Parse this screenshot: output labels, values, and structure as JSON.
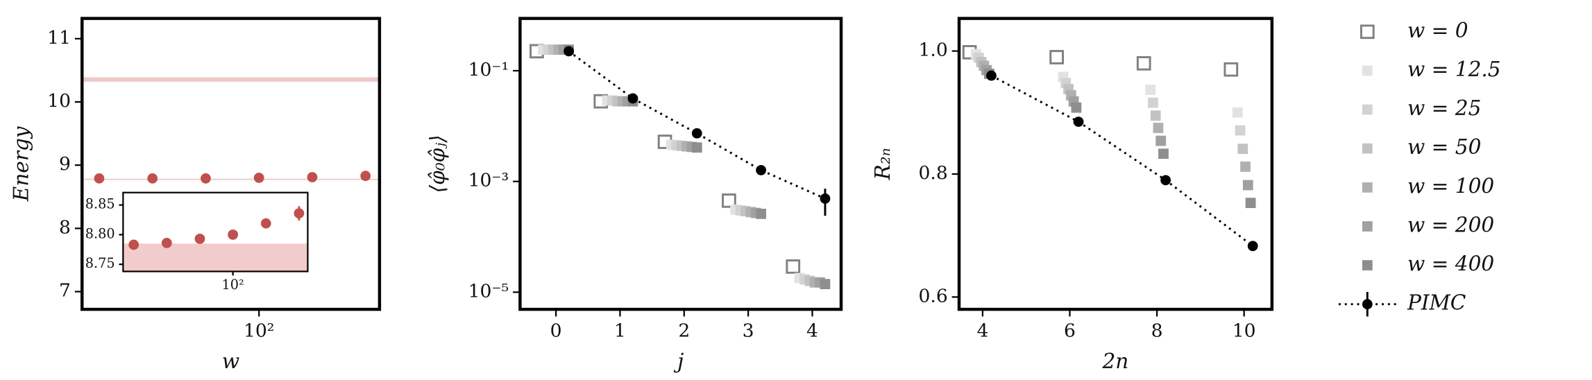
{
  "chart_data": [
    {
      "type": "scatter",
      "xlabel": "w",
      "ylabel": "Energy",
      "xscale": "log",
      "xlim": [
        10,
        480
      ],
      "xticks": [
        {
          "value": 100,
          "label": "10²"
        }
      ],
      "ylim": [
        6.72,
        11.32
      ],
      "yticks": [
        7,
        8,
        9,
        10,
        11
      ],
      "bands": [
        {
          "range": [
            10.32,
            10.39
          ],
          "color": "#ecc9c9"
        },
        {
          "range": [
            8.765,
            8.785
          ],
          "color": "#ecc9c9"
        }
      ],
      "series": [
        {
          "x": [
            12.5,
            25,
            50,
            100,
            200,
            400
          ],
          "values": [
            8.79,
            8.79,
            8.79,
            8.8,
            8.81,
            8.83
          ],
          "color": "#c0504d",
          "marker": "circle"
        }
      ]
    },
    {
      "type": "scatter",
      "inset": true,
      "xscale": "log",
      "xlim": [
        10,
        480
      ],
      "xticks": [
        {
          "value": 100,
          "label": "10²"
        }
      ],
      "ylim": [
        8.738,
        8.871
      ],
      "yticks": [
        8.75,
        {
          "value": 8.8,
          "label": "8.80"
        },
        8.85
      ],
      "bands": [
        {
          "range": [
            8.7,
            8.785
          ],
          "color": "#f2cccc"
        }
      ],
      "series": [
        {
          "x": [
            12.5,
            25,
            50,
            100,
            200,
            400
          ],
          "values": [
            8.783,
            8.786,
            8.793,
            8.8,
            8.819,
            8.836
          ],
          "errors": [
            0.002,
            0.002,
            0.002,
            0.003,
            0.008,
            0.012
          ],
          "color": "#c0504d",
          "marker": "circle"
        }
      ]
    },
    {
      "type": "line",
      "xlabel": "j",
      "ylabel": "⟨φ̂₀φ̂ⱼ⟩",
      "yscale": "log",
      "xlim": [
        -0.56,
        4.45
      ],
      "xticks": [
        0,
        1,
        2,
        3,
        4
      ],
      "ylim": [
        4.9e-06,
        0.88
      ],
      "yticks": [
        {
          "value": 0.1,
          "label": "10⁻¹"
        },
        {
          "value": 0.001,
          "label": "10⁻³"
        },
        {
          "value": 1e-05,
          "label": "10⁻⁵"
        }
      ],
      "series": [
        {
          "name": "w = 0",
          "x": [
            -0.3,
            0.7,
            1.7,
            2.7,
            3.7
          ],
          "values": [
            0.225,
            0.028,
            0.0052,
            0.00045,
            2.9e-05
          ],
          "color": "#808080",
          "marker": "square-open"
        },
        {
          "name": "w = 12.5",
          "x": [
            -0.2,
            0.8,
            1.8,
            2.8,
            3.8
          ],
          "values": [
            0.24,
            0.029,
            0.0046,
            0.00031,
            1.8e-05
          ],
          "color": "#e2e2e2",
          "marker": "square"
        },
        {
          "name": "w = 25",
          "x": [
            -0.12,
            0.88,
            1.88,
            2.88,
            3.88
          ],
          "values": [
            0.24,
            0.029,
            0.0045,
            0.0003,
            1.7e-05
          ],
          "color": "#d2d2d2",
          "marker": "square"
        },
        {
          "name": "w = 50",
          "x": [
            -0.04,
            0.96,
            1.96,
            2.96,
            3.96
          ],
          "values": [
            0.24,
            0.028,
            0.0044,
            0.00029,
            1.6e-05
          ],
          "color": "#c2c2c2",
          "marker": "square"
        },
        {
          "name": "w = 100",
          "x": [
            0.04,
            1.04,
            2.04,
            3.04,
            4.04
          ],
          "values": [
            0.24,
            0.028,
            0.0043,
            0.00028,
            1.5e-05
          ],
          "color": "#b0b0b0",
          "marker": "square"
        },
        {
          "name": "w = 200",
          "x": [
            0.12,
            1.12,
            2.12,
            3.12,
            4.12
          ],
          "values": [
            0.24,
            0.028,
            0.0042,
            0.00027,
            1.5e-05
          ],
          "color": "#a0a0a0",
          "marker": "square"
        },
        {
          "name": "w = 400",
          "x": [
            0.2,
            1.2,
            2.2,
            3.2,
            4.2
          ],
          "values": [
            0.24,
            0.028,
            0.0041,
            0.00026,
            1.4e-05
          ],
          "color": "#8e8e8e",
          "marker": "square"
        },
        {
          "name": "PIMC",
          "x": [
            0.2,
            1.2,
            2.2,
            3.2,
            4.2
          ],
          "values": [
            0.225,
            0.0316,
            0.0074,
            0.0016,
            0.00049
          ],
          "errors": [
            0.005,
            0.001,
            0.0002,
            5e-05,
            0.00025
          ],
          "color": "#000000",
          "marker": "circle",
          "linestyle": "dotted"
        }
      ]
    },
    {
      "type": "line",
      "xlabel": "2n",
      "ylabel": "R₂ₙ",
      "xlim": [
        3.46,
        10.64
      ],
      "xticks": [
        4,
        6,
        8,
        10
      ],
      "ylim": [
        0.58,
        1.053
      ],
      "yticks": [
        0.6,
        0.8,
        {
          "value": 1,
          "label": "1.0"
        }
      ],
      "series": [
        {
          "x": [
            3.7,
            5.7,
            7.7,
            9.7
          ],
          "values": [
            0.998,
            0.99,
            0.98,
            0.97
          ],
          "color": "#808080",
          "marker": "square-open"
        },
        {
          "x": [
            3.85,
            5.85,
            7.85,
            9.85
          ],
          "values": [
            0.995,
            0.958,
            0.937,
            0.9
          ],
          "color": "#e2e2e2",
          "marker": "square"
        },
        {
          "x": [
            3.91,
            5.91,
            7.91,
            9.91
          ],
          "values": [
            0.989,
            0.948,
            0.916,
            0.871
          ],
          "color": "#d2d2d2",
          "marker": "square"
        },
        {
          "x": [
            3.97,
            5.97,
            7.97,
            9.97
          ],
          "values": [
            0.982,
            0.938,
            0.895,
            0.841
          ],
          "color": "#c2c2c2",
          "marker": "square"
        },
        {
          "x": [
            4.03,
            6.03,
            8.03,
            10.03
          ],
          "values": [
            0.976,
            0.928,
            0.875,
            0.812
          ],
          "color": "#b0b0b0",
          "marker": "square"
        },
        {
          "x": [
            4.09,
            6.09,
            8.09,
            10.09
          ],
          "values": [
            0.969,
            0.918,
            0.854,
            0.782
          ],
          "color": "#a0a0a0",
          "marker": "square"
        },
        {
          "x": [
            4.15,
            6.15,
            8.15,
            10.15
          ],
          "values": [
            0.963,
            0.908,
            0.833,
            0.753
          ],
          "color": "#8e8e8e",
          "marker": "square"
        },
        {
          "x": [
            4.2,
            6.2,
            8.2,
            10.2
          ],
          "values": [
            0.96,
            0.885,
            0.79,
            0.683
          ],
          "color": "#000000",
          "marker": "circle",
          "linestyle": "dotted"
        }
      ]
    }
  ]
}
